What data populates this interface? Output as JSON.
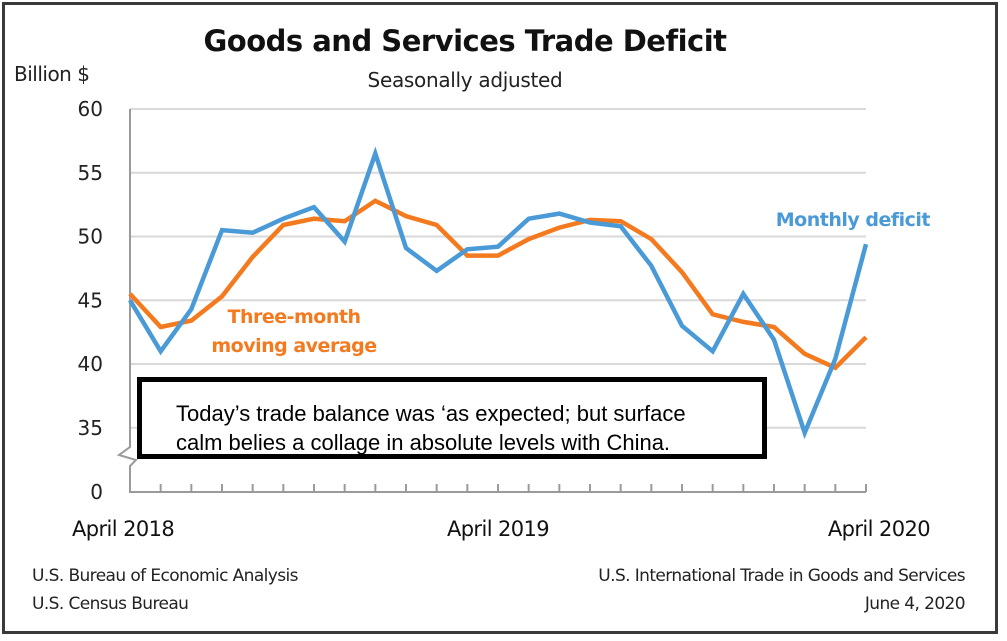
{
  "chart_data": {
    "type": "line",
    "title": "Goods and Services Trade Deficit",
    "subtitle": "Seasonally adjusted",
    "ylabel": "Billion $",
    "xlabel": "",
    "ylim": [
      35,
      60
    ],
    "axis_break": true,
    "y_ticks": [
      "60",
      "55",
      "50",
      "45",
      "40",
      "35",
      "0"
    ],
    "y_tick_values": [
      60,
      55,
      50,
      45,
      40,
      35,
      0
    ],
    "x_tick_labels": [
      {
        "label": "April 2018",
        "index": 0
      },
      {
        "label": "April 2019",
        "index": 12
      },
      {
        "label": "April 2020",
        "index": 24
      }
    ],
    "x": [
      "Apr 2018",
      "May 2018",
      "Jun 2018",
      "Jul 2018",
      "Aug 2018",
      "Sep 2018",
      "Oct 2018",
      "Nov 2018",
      "Dec 2018",
      "Jan 2019",
      "Feb 2019",
      "Mar 2019",
      "Apr 2019",
      "May 2019",
      "Jun 2019",
      "Jul 2019",
      "Aug 2019",
      "Sep 2019",
      "Oct 2019",
      "Nov 2019",
      "Dec 2019",
      "Jan 2020",
      "Feb 2020",
      "Mar 2020",
      "Apr 2020"
    ],
    "grid": true,
    "series": [
      {
        "name": "Monthly deficit",
        "color": "#4a9ad8",
        "label_text": "Monthly deficit",
        "values": [
          45.0,
          41.0,
          44.3,
          50.5,
          50.3,
          51.4,
          52.3,
          49.6,
          56.5,
          49.1,
          47.3,
          49.0,
          49.2,
          51.4,
          51.8,
          51.1,
          50.8,
          47.7,
          43.0,
          41.0,
          45.5,
          41.9,
          34.6,
          40.4,
          49.4
        ]
      },
      {
        "name": "Three-month moving average",
        "color": "#f47a20",
        "label_text": [
          "Three-month",
          "moving average"
        ],
        "values": [
          45.5,
          42.9,
          43.4,
          45.3,
          48.4,
          50.9,
          51.4,
          51.2,
          52.8,
          51.6,
          50.9,
          48.5,
          48.5,
          49.8,
          50.7,
          51.3,
          51.2,
          49.8,
          47.2,
          43.9,
          43.3,
          42.9,
          40.8,
          39.7,
          42.1
        ]
      }
    ]
  },
  "annotation": {
    "line1": "Today’s trade balance was ‘as expected; but surface",
    "line2": "calm belies a collage in absolute levels with China."
  },
  "footer": {
    "left_line1": "U.S. Bureau of Economic Analysis",
    "left_line2": "U.S. Census Bureau",
    "right_line1": "U.S. International Trade in Goods and Services",
    "right_line2": "June 4, 2020"
  }
}
